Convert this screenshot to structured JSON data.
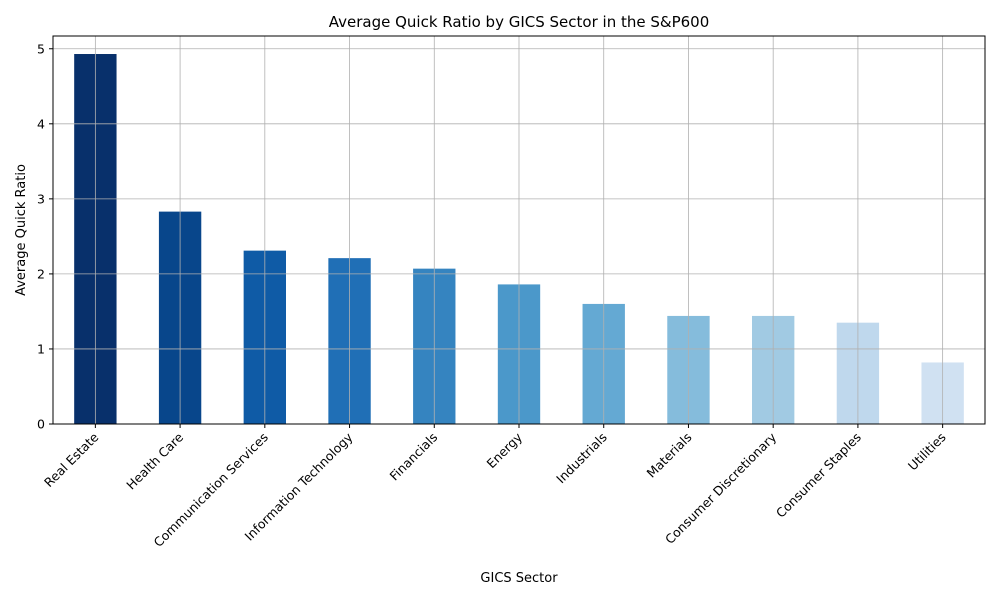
{
  "chart_data": {
    "type": "bar",
    "title": "Average Quick Ratio by GICS Sector in the S&P600",
    "xlabel": "GICS Sector",
    "ylabel": "Average Quick Ratio",
    "categories": [
      "Real Estate",
      "Health Care",
      "Communication Services",
      "Information Technology",
      "Financials",
      "Energy",
      "Industrials",
      "Materials",
      "Consumer Discretionary",
      "Consumer Staples",
      "Utilities"
    ],
    "values": [
      4.93,
      2.83,
      2.31,
      2.21,
      2.07,
      1.86,
      1.6,
      1.44,
      1.44,
      1.35,
      0.82
    ],
    "colors": [
      "#08306b",
      "#08468b",
      "#0f5ba6",
      "#206fb6",
      "#3584c0",
      "#4b98ca",
      "#64a9d3",
      "#85bcdc",
      "#a1cae3",
      "#bfd8ed",
      "#d0e1f2"
    ],
    "ylim": [
      0,
      5.17
    ],
    "yticks": [
      0,
      1,
      2,
      3,
      4,
      5
    ],
    "grid": true,
    "legend": "none"
  }
}
